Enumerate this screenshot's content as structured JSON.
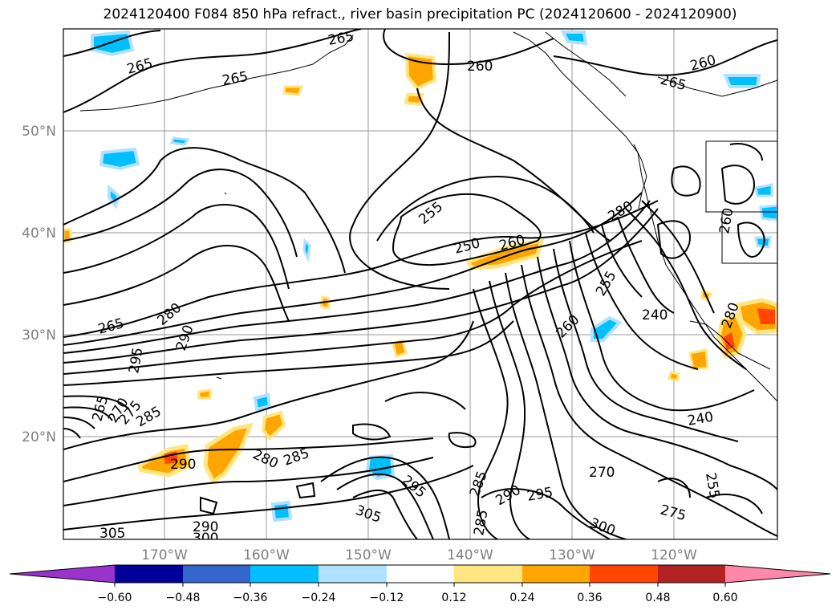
{
  "title": "2024120400 F084 850 hPa refract., river basin precipitation PC (2024120600 - 2024120900)",
  "lat_labels": [
    "50°N",
    "40°N",
    "30°N",
    "20°N"
  ],
  "lon_labels": [
    "170°W",
    "160°W",
    "150°W",
    "140°W",
    "130°W",
    "120°W"
  ],
  "contour_labels": [
    "265",
    "265",
    "265",
    "260",
    "260",
    "265",
    "255",
    "250",
    "260",
    "280",
    "240",
    "260",
    "255",
    "280",
    "290",
    "265",
    "295",
    "260",
    "240",
    "265",
    "270",
    "275",
    "280",
    "285",
    "290",
    "280",
    "285",
    "295",
    "285",
    "285",
    "290",
    "295",
    "270",
    "275",
    "255",
    "305",
    "305",
    "290",
    "300",
    "300"
  ],
  "colorbar": {
    "ticks": [
      "−0.60",
      "−0.48",
      "−0.36",
      "−0.24",
      "−0.12",
      "0.12",
      "0.24",
      "0.36",
      "0.48",
      "0.60"
    ],
    "colors": [
      "#9933cc",
      "#000099",
      "#3366cc",
      "#00bfff",
      "#b0e2ff",
      "#ffffff",
      "#ffe680",
      "#ffa500",
      "#ff4500",
      "#b22222",
      "#ff88aa"
    ]
  }
}
